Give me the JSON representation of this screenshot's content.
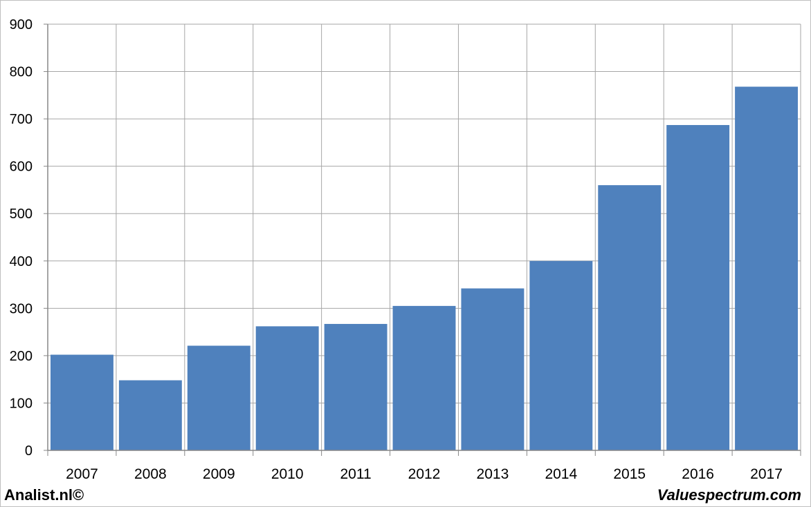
{
  "colors": {
    "bar": "#4f81bd",
    "grid": "#a6a6a6",
    "axis": "#868686",
    "text": "#000000"
  },
  "footer": {
    "left_text": "Analist.nl©",
    "right_text": "Valuespectrum.com"
  },
  "chart_data": {
    "type": "bar",
    "title": "",
    "xlabel": "",
    "ylabel": "",
    "categories": [
      "2007",
      "2008",
      "2009",
      "2010",
      "2011",
      "2012",
      "2013",
      "2014",
      "2015",
      "2016",
      "2017"
    ],
    "values": [
      202,
      148,
      221,
      262,
      267,
      305,
      342,
      400,
      560,
      687,
      768
    ],
    "ylim": [
      0,
      900
    ],
    "yticks": [
      0,
      100,
      200,
      300,
      400,
      500,
      600,
      700,
      800,
      900
    ],
    "grid": true,
    "legend": "none"
  }
}
